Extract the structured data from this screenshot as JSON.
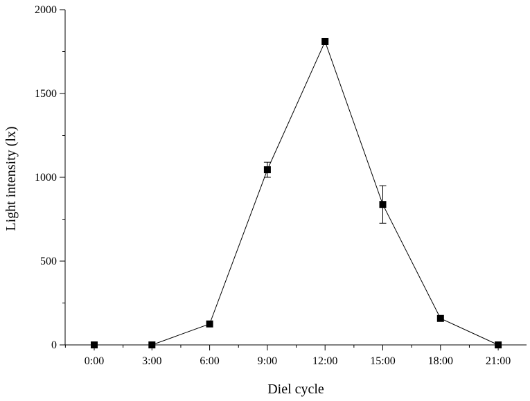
{
  "chart_data": {
    "type": "line",
    "title": "",
    "xlabel": "Diel cycle",
    "ylabel": "Light intensity (lx)",
    "categories": [
      "0:00",
      "3:00",
      "6:00",
      "9:00",
      "12:00",
      "15:00",
      "18:00",
      "21:00"
    ],
    "ylim": [
      0,
      2000
    ],
    "yticks": [
      "0",
      "500",
      "1000",
      "1500",
      "2000"
    ],
    "series": [
      {
        "values": [
          0,
          0,
          125,
          1045,
          1810,
          838,
          158,
          0
        ],
        "error": [
          0,
          0,
          0,
          45,
          0,
          112,
          0,
          0
        ],
        "marker": "filled-square",
        "color": "#000000"
      }
    ],
    "grid": false,
    "legend": "none"
  }
}
